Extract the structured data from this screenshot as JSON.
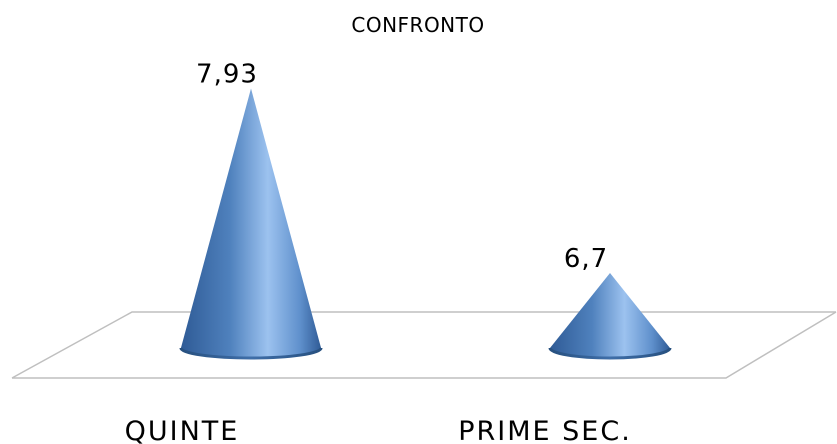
{
  "chart_data": {
    "type": "bar",
    "bar_shape": "cone-3d",
    "title": "CONFRONTO",
    "categories": [
      "QUINTE",
      "PRIME SEC."
    ],
    "values": [
      7.93,
      6.7
    ],
    "data_labels": [
      "7,93",
      "6,7"
    ],
    "xlabel": "",
    "ylabel": "",
    "ylim": [
      6.2,
      8.0
    ],
    "grid": false,
    "legend": "none",
    "colors": {
      "cone_dark": "#2f5b96",
      "cone_mid": "#4f81bd",
      "cone_light": "#9cc2ef",
      "floor_line": "#bfbfbf"
    }
  }
}
